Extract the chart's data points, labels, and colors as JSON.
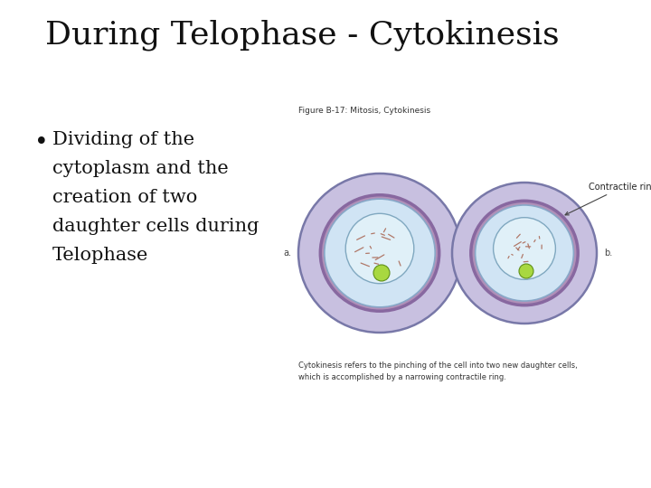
{
  "title": "During Telophase - Cytokinesis",
  "title_fontsize": 26,
  "title_font": "serif",
  "background_color": "#ffffff",
  "bullet_text": [
    "Dividing of the",
    "cytoplasm and the",
    "creation of two",
    "daughter cells during",
    "Telophase"
  ],
  "bullet_fontsize": 15,
  "bullet_font": "serif",
  "figure_caption_title": "Figure B-17: Mitosis, Cytokinesis",
  "figure_caption_body": "Cytokinesis refers to the pinching of the cell into two new daughter cells,\nwhich is accomplished by a narrowing contractile ring.",
  "outer_cell_color": "#c8c0e0",
  "inner_ring_color": "#b090b8",
  "cytoplasm_color": "#d0e4f4",
  "nucleus_color": "#e0f0f8",
  "green_dot_color": "#a8d840",
  "contractile_label": "Contractile ring",
  "label_a": "a.",
  "label_b": "b."
}
